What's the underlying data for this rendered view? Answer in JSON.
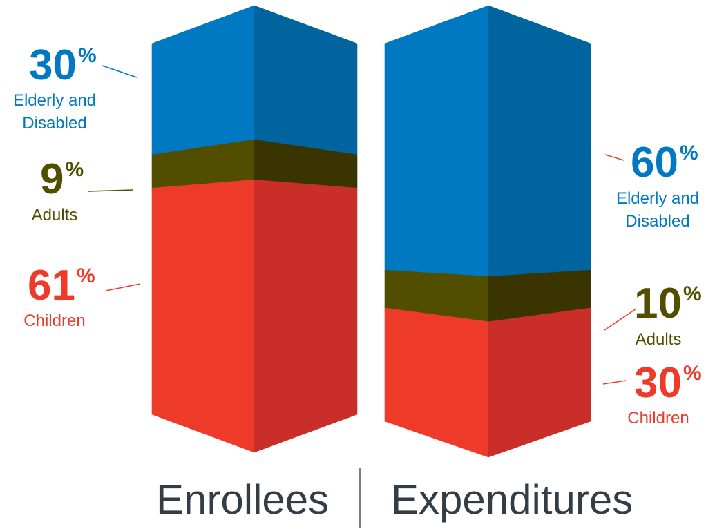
{
  "chart_data": {
    "type": "bar",
    "stacked": true,
    "style": "3d-column",
    "categories": [
      "Enrollees",
      "Expenditures"
    ],
    "unit": "%",
    "series": [
      {
        "name": "Elderly and Disabled",
        "values": [
          30,
          60
        ],
        "color": "#0079C2",
        "shade_color": "#00649E"
      },
      {
        "name": "Adults",
        "values": [
          9,
          10
        ],
        "color": "#524E00",
        "shade_color": "#3A3500"
      },
      {
        "name": "Children",
        "values": [
          61,
          30
        ],
        "color": "#EE3A29",
        "shade_color": "#C92E28"
      }
    ],
    "category_text_color": "#333D45",
    "ylim": [
      0,
      100
    ],
    "grid": false,
    "legend": "none"
  }
}
